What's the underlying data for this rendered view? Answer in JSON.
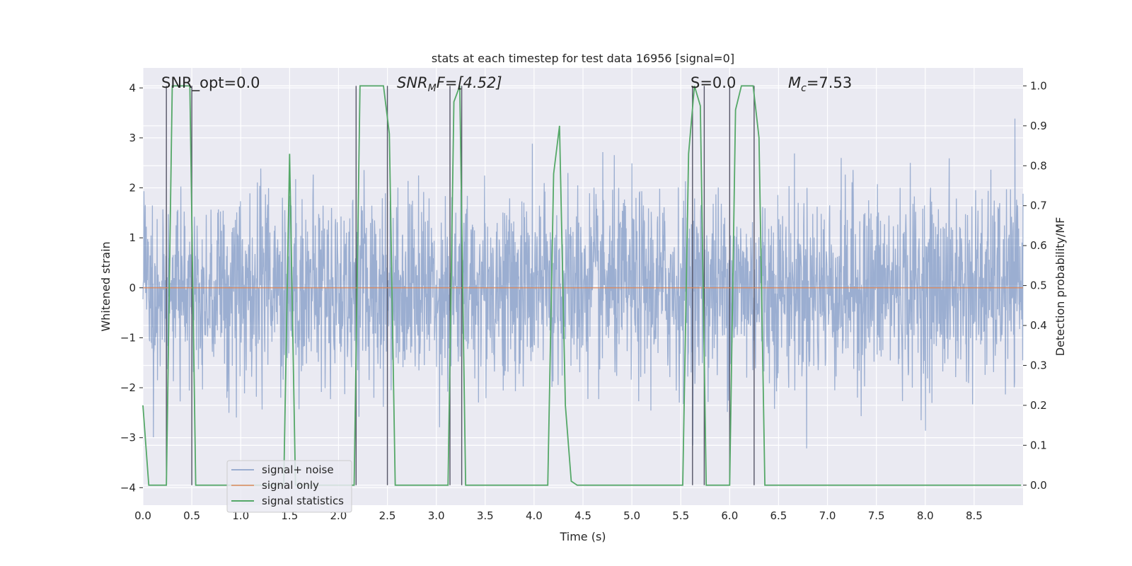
{
  "chart_data": {
    "type": "line",
    "title": "stats at each timestep for test data 16956 [signal=0]",
    "xlabel": "Time (s)",
    "ylabel": "Whitened strain",
    "y2label": "Detection probability/MF",
    "xlim": [
      0,
      9.0
    ],
    "ylim": [
      -4.35,
      4.4
    ],
    "y2lim": [
      -0.05,
      1.045
    ],
    "xticks": [
      0.0,
      0.5,
      1.0,
      1.5,
      2.0,
      2.5,
      3.0,
      3.5,
      4.0,
      4.5,
      5.0,
      5.5,
      6.0,
      6.5,
      7.0,
      7.5,
      8.0,
      8.5
    ],
    "xtick_labels": [
      "0.0",
      "0.5",
      "1.0",
      "1.5",
      "2.0",
      "2.5",
      "3.0",
      "3.5",
      "4.0",
      "4.5",
      "5.0",
      "5.5",
      "6.0",
      "6.5",
      "7.0",
      "7.5",
      "8.0",
      "8.5"
    ],
    "yticks": [
      -4,
      -3,
      -2,
      -1,
      0,
      1,
      2,
      3,
      4
    ],
    "ytick_labels": [
      "−4",
      "−3",
      "−2",
      "−1",
      "0",
      "1",
      "2",
      "3",
      "4"
    ],
    "y2ticks": [
      0.0,
      0.1,
      0.2,
      0.3,
      0.4,
      0.5,
      0.6,
      0.7,
      0.8,
      0.9,
      1.0
    ],
    "y2tick_labels": [
      "0.0",
      "0.1",
      "0.2",
      "0.3",
      "0.4",
      "0.5",
      "0.6",
      "0.7",
      "0.8",
      "0.9",
      "1.0"
    ],
    "grid": true,
    "legend_position": "bottom-left",
    "annotations": {
      "snr_opt": "SNR_opt=0.0",
      "snr_mf_prefix": "SNR",
      "snr_mf_sub": "M",
      "snr_mf_suffix": "F=[4.52]",
      "s": "S=0.0",
      "mc_prefix": "M",
      "mc_sub": "c",
      "mc_suffix": "=7.53"
    },
    "series": [
      {
        "name": "signal+ noise",
        "color": "#4c72b0",
        "axis": "left",
        "description_range": [
          -3.5,
          3.6
        ]
      },
      {
        "name": "signal only",
        "color": "#dd8452",
        "axis": "left",
        "values_constant": 0.0
      },
      {
        "name": "signal statistics",
        "color": "#55a868",
        "axis": "right",
        "x": [
          0.0,
          0.06,
          0.12,
          0.18,
          0.24,
          0.3,
          0.36,
          0.42,
          0.48,
          0.54,
          0.6,
          0.8,
          1.0,
          1.2,
          1.44,
          1.5,
          1.56,
          1.62,
          1.7,
          1.9,
          2.1,
          2.16,
          2.22,
          2.28,
          2.34,
          2.4,
          2.46,
          2.52,
          2.58,
          2.64,
          2.7,
          3.0,
          3.12,
          3.18,
          3.24,
          3.3,
          3.36,
          3.6,
          3.9,
          4.14,
          4.2,
          4.26,
          4.32,
          4.38,
          4.44,
          4.6,
          5.0,
          5.52,
          5.58,
          5.64,
          5.7,
          5.76,
          5.82,
          5.88,
          5.94,
          6.0,
          6.06,
          6.12,
          6.18,
          6.24,
          6.3,
          6.36,
          6.42,
          7.0,
          8.0,
          8.98
        ],
        "values": [
          0.2,
          0.0,
          0.0,
          0.0,
          0.0,
          1.0,
          1.0,
          1.0,
          1.0,
          0.0,
          0.0,
          0.0,
          0.0,
          0.0,
          0.0,
          0.83,
          0.0,
          0.0,
          0.0,
          0.0,
          0.0,
          0.0,
          1.0,
          1.0,
          1.0,
          1.0,
          1.0,
          0.88,
          0.0,
          0.0,
          0.0,
          0.0,
          0.0,
          0.96,
          1.0,
          0.0,
          0.0,
          0.0,
          0.0,
          0.0,
          0.78,
          0.9,
          0.2,
          0.01,
          0.0,
          0.0,
          0.0,
          0.0,
          0.83,
          1.0,
          0.95,
          0.0,
          0.0,
          0.0,
          0.0,
          0.0,
          0.94,
          1.0,
          1.0,
          1.0,
          0.87,
          0.0,
          0.0,
          0.0,
          0.0,
          0.0
        ]
      }
    ],
    "vertical_markers": [
      0.24,
      0.5,
      2.18,
      2.5,
      3.14,
      3.26,
      5.62,
      5.74,
      6.0,
      6.25
    ]
  }
}
